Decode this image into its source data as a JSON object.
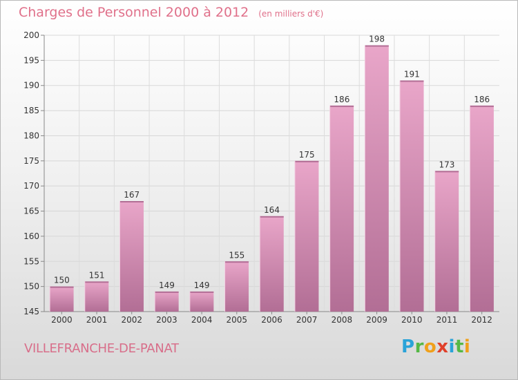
{
  "title": "Charges de Personnel 2000 à 2012",
  "subtitle": "(en milliers d'€)",
  "city": "VILLEFRANCHE-DE-PANAT",
  "logo": "Proxiti",
  "colors": {
    "title": "#e0708a",
    "bar_top": "#e9a6c9",
    "bar_bottom": "#b26e95",
    "city": "#d86e8a"
  },
  "chart_data": {
    "type": "bar",
    "title": "Charges de Personnel 2000 à 2012",
    "subtitle": "(en milliers d'€)",
    "categories": [
      "2000",
      "2001",
      "2002",
      "2003",
      "2004",
      "2005",
      "2006",
      "2007",
      "2008",
      "2009",
      "2010",
      "2011",
      "2012"
    ],
    "values": [
      150,
      151,
      167,
      149,
      149,
      155,
      164,
      175,
      186,
      198,
      191,
      173,
      186
    ],
    "ylim": [
      145,
      200
    ],
    "yticks": [
      145,
      150,
      155,
      160,
      165,
      170,
      175,
      180,
      185,
      190,
      195,
      200
    ],
    "grid": true,
    "data_labels": true
  }
}
